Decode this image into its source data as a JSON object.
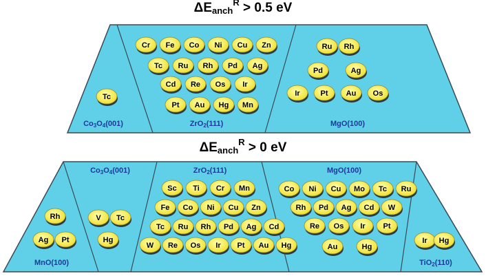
{
  "panels": [
    {
      "title": {
        "base": "ΔE",
        "sub": "anch",
        "sup": "R",
        "rest": " > 0.5 eV"
      },
      "regions": [
        {
          "label": [
            "Co",
            "3",
            "O",
            "4",
            "(001)"
          ],
          "rows": [
            [
              "Tc"
            ]
          ]
        },
        {
          "label": [
            "ZrO",
            "2",
            "(111)"
          ],
          "rows": [
            [
              "Cr",
              "Fe",
              "Co",
              "Ni",
              "Cu",
              "Zn"
            ],
            [
              "Tc",
              "Ru",
              "Rh",
              "Pd",
              "Ag"
            ],
            [
              "Cd",
              "Re",
              "Os",
              "Ir"
            ],
            [
              "Pt",
              "Au",
              "Hg",
              "Mn"
            ]
          ]
        },
        {
          "label": [
            "MgO(100)"
          ],
          "rows": [
            [
              "Ru",
              "Rh"
            ],
            [
              "Pd",
              "Ag"
            ],
            [
              "Ir",
              "Pt",
              "Au",
              "Os"
            ]
          ]
        }
      ]
    },
    {
      "title": {
        "base": "ΔE",
        "sub": "anch",
        "sup": "R",
        "rest": " > 0 eV"
      },
      "regions": [
        {
          "label": [
            "MnO(100)"
          ],
          "rows": [
            [
              "Rh"
            ],
            [
              "Ag",
              "Pt"
            ]
          ]
        },
        {
          "label": [
            "Co",
            "3",
            "O",
            "4",
            "(001)"
          ],
          "rows": [
            [
              "V",
              "Tc"
            ],
            [
              "Hg"
            ]
          ]
        },
        {
          "label": [
            "ZrO",
            "2",
            "(111)"
          ],
          "rows": [
            [
              "Sc",
              "Ti",
              "Cr",
              "Mn"
            ],
            [
              "Fe",
              "Co",
              "Ni",
              "Cu",
              "Zn"
            ],
            [
              "Tc",
              "Ru",
              "Rh",
              "Pd",
              "Ag",
              "Cd"
            ],
            [
              "W",
              "Re",
              "Os",
              "Ir",
              "Pt",
              "Au",
              "Hg"
            ]
          ]
        },
        {
          "label": [
            "MgO(100)"
          ],
          "rows": [
            [
              "Co",
              "Ni",
              "Cu",
              "Mo",
              "Tc",
              "Ru"
            ],
            [
              "Rh",
              "Pd",
              "Ag",
              "Cd",
              "W"
            ],
            [
              "Re",
              "Os",
              "Ir",
              "Pt"
            ],
            [
              "Au",
              "Hg"
            ]
          ]
        },
        {
          "label": [
            "TiO",
            "2",
            "(110)"
          ],
          "rows": [
            [
              "Ir",
              "Hg"
            ]
          ]
        }
      ]
    }
  ]
}
